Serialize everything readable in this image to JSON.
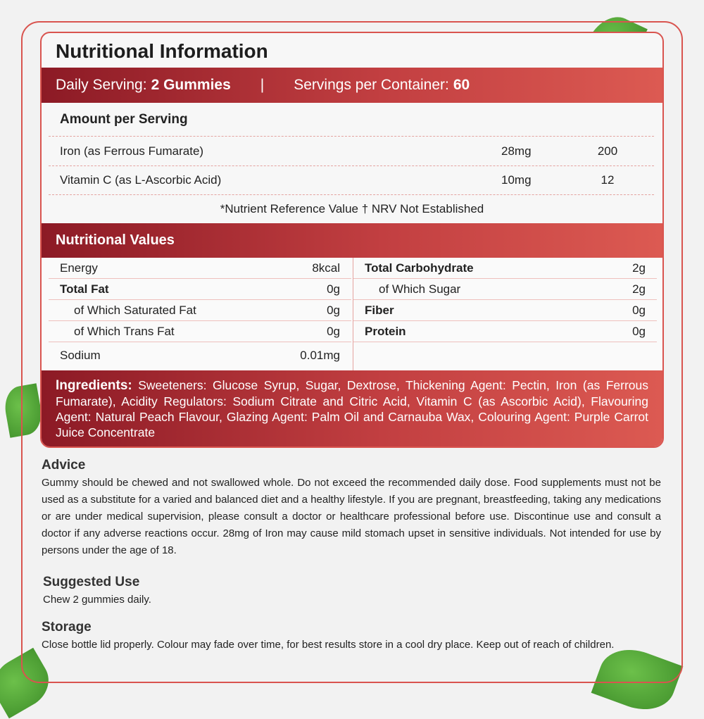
{
  "title": "Nutritional Information",
  "serving": {
    "daily_label": "Daily Serving:",
    "daily_value": "2 Gummies",
    "separator": "|",
    "per_container_label": "Servings per Container:",
    "per_container_value": "60"
  },
  "amount_per_serving": {
    "heading": "Amount per Serving",
    "rows": [
      {
        "name": "Iron (as Ferrous Fumarate)",
        "amount": "28mg",
        "nrv": "200"
      },
      {
        "name": "Vitamin C (as L-Ascorbic Acid)",
        "amount": "10mg",
        "nrv": "12"
      }
    ],
    "footnote": "*Nutrient Reference Value † NRV Not Established"
  },
  "nutritional_values": {
    "heading": "Nutritional Values",
    "left": [
      {
        "name": "Energy",
        "value": "8kcal"
      },
      {
        "name": "Total Fat",
        "value": "0g"
      },
      {
        "name": "of Which Saturated Fat",
        "value": "0g"
      },
      {
        "name": "of Which Trans Fat",
        "value": "0g"
      },
      {
        "name": "Sodium",
        "value": "0.01mg"
      }
    ],
    "right": [
      {
        "name": "Total Carbohydrate",
        "value": "2g"
      },
      {
        "name": "of Which Sugar",
        "value": "2g"
      },
      {
        "name": "Fiber",
        "value": "0g"
      },
      {
        "name": "Protein",
        "value": "0g"
      }
    ]
  },
  "ingredients": {
    "label": "Ingredients:",
    "text": "Sweeteners: Glucose Syrup, Sugar, Dextrose, Thickening Agent: Pectin, Iron (as Ferrous Fumarate),  Acidity Regulators: Sodium Citrate and Citric Acid, Vitamin C (as Ascorbic Acid), Flavouring Agent: Natural Peach Flavour, Glazing Agent: Palm Oil and Carnauba Wax, Colouring Agent: Purple Carrot Juice Concentrate"
  },
  "advice": {
    "heading": "Advice",
    "text": "Gummy should be chewed and not swallowed whole. Do not exceed the recommended daily dose. Food supplements must not be used as a substitute for a varied and balanced diet and a healthy lifestyle. If you are pregnant, breastfeeding, taking any medications or are under medical supervision, please consult a doctor or healthcare professional before use. Discontinue use and consult a doctor if any adverse reactions occur. 28mg of Iron may cause mild stomach upset in sensitive individuals. Not intended for use by persons under the age of 18."
  },
  "suggested_use": {
    "heading": "Suggested Use",
    "text": "Chew 2 gummies daily."
  },
  "storage": {
    "heading": "Storage",
    "text": "Close bottle lid properly. Colour may fade over time, for best results store in a cool dry place. Keep out of reach of children."
  },
  "colors": {
    "accent": "#d9544f",
    "band_dark": "#8c1a25",
    "leaf": "#4fa33a"
  }
}
